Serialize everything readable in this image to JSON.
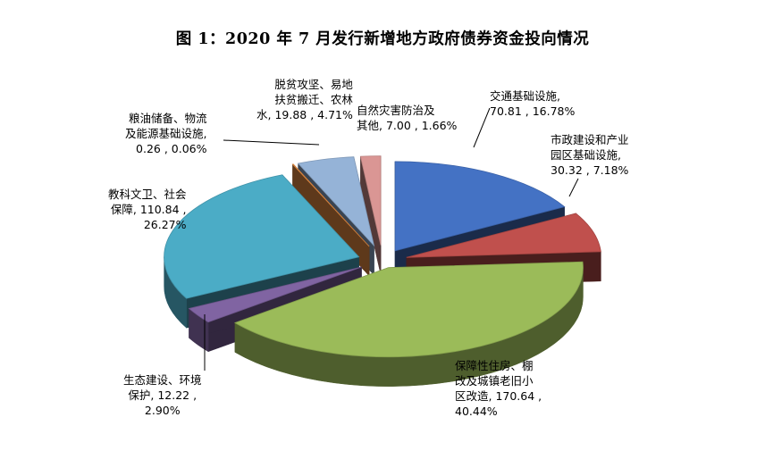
{
  "chart_data": {
    "type": "pie",
    "title": "图 1：2020 年 7 月发行新增地方政府债券资金投向情况",
    "slices": [
      {
        "label_lines": [
          "交通基础设施,",
          "70.81 , 16.78%"
        ],
        "value": 70.81,
        "percent": 16.78,
        "color": "#4472c4"
      },
      {
        "label_lines": [
          "市政建设和产业",
          "园区基础设施,",
          "30.32 , 7.18%"
        ],
        "value": 30.32,
        "percent": 7.18,
        "color": "#c0504d"
      },
      {
        "label_lines": [
          "保障性住房、棚",
          "改及城镇老旧小",
          "区改造, 170.64 ,",
          "40.44%"
        ],
        "value": 170.64,
        "percent": 40.44,
        "color": "#9bbb59"
      },
      {
        "label_lines": [
          "生态建设、环境",
          "保护, 12.22 ,",
          "2.90%"
        ],
        "value": 12.22,
        "percent": 2.9,
        "color": "#8064a2"
      },
      {
        "label_lines": [
          "教科文卫、社会",
          "保障, 110.84 ,",
          "26.27%"
        ],
        "value": 110.84,
        "percent": 26.27,
        "color": "#4bacc6"
      },
      {
        "label_lines": [
          "粮油储备、物流",
          "及能源基础设施,",
          "0.26 , 0.06%"
        ],
        "value": 0.26,
        "percent": 0.06,
        "color": "#f79646"
      },
      {
        "label_lines": [
          "脱贫攻坚、易地",
          "扶贫搬迁、农林",
          "水, 19.88 , 4.71%"
        ],
        "value": 19.88,
        "percent": 4.71,
        "color": "#95b3d7"
      },
      {
        "label_lines": [
          "自然灾害防治及",
          "其他, 7.00 , 1.66%"
        ],
        "value": 7.0,
        "percent": 1.66,
        "color": "#da9694"
      }
    ],
    "style": "3d-exploded-pie",
    "legend": "none"
  }
}
